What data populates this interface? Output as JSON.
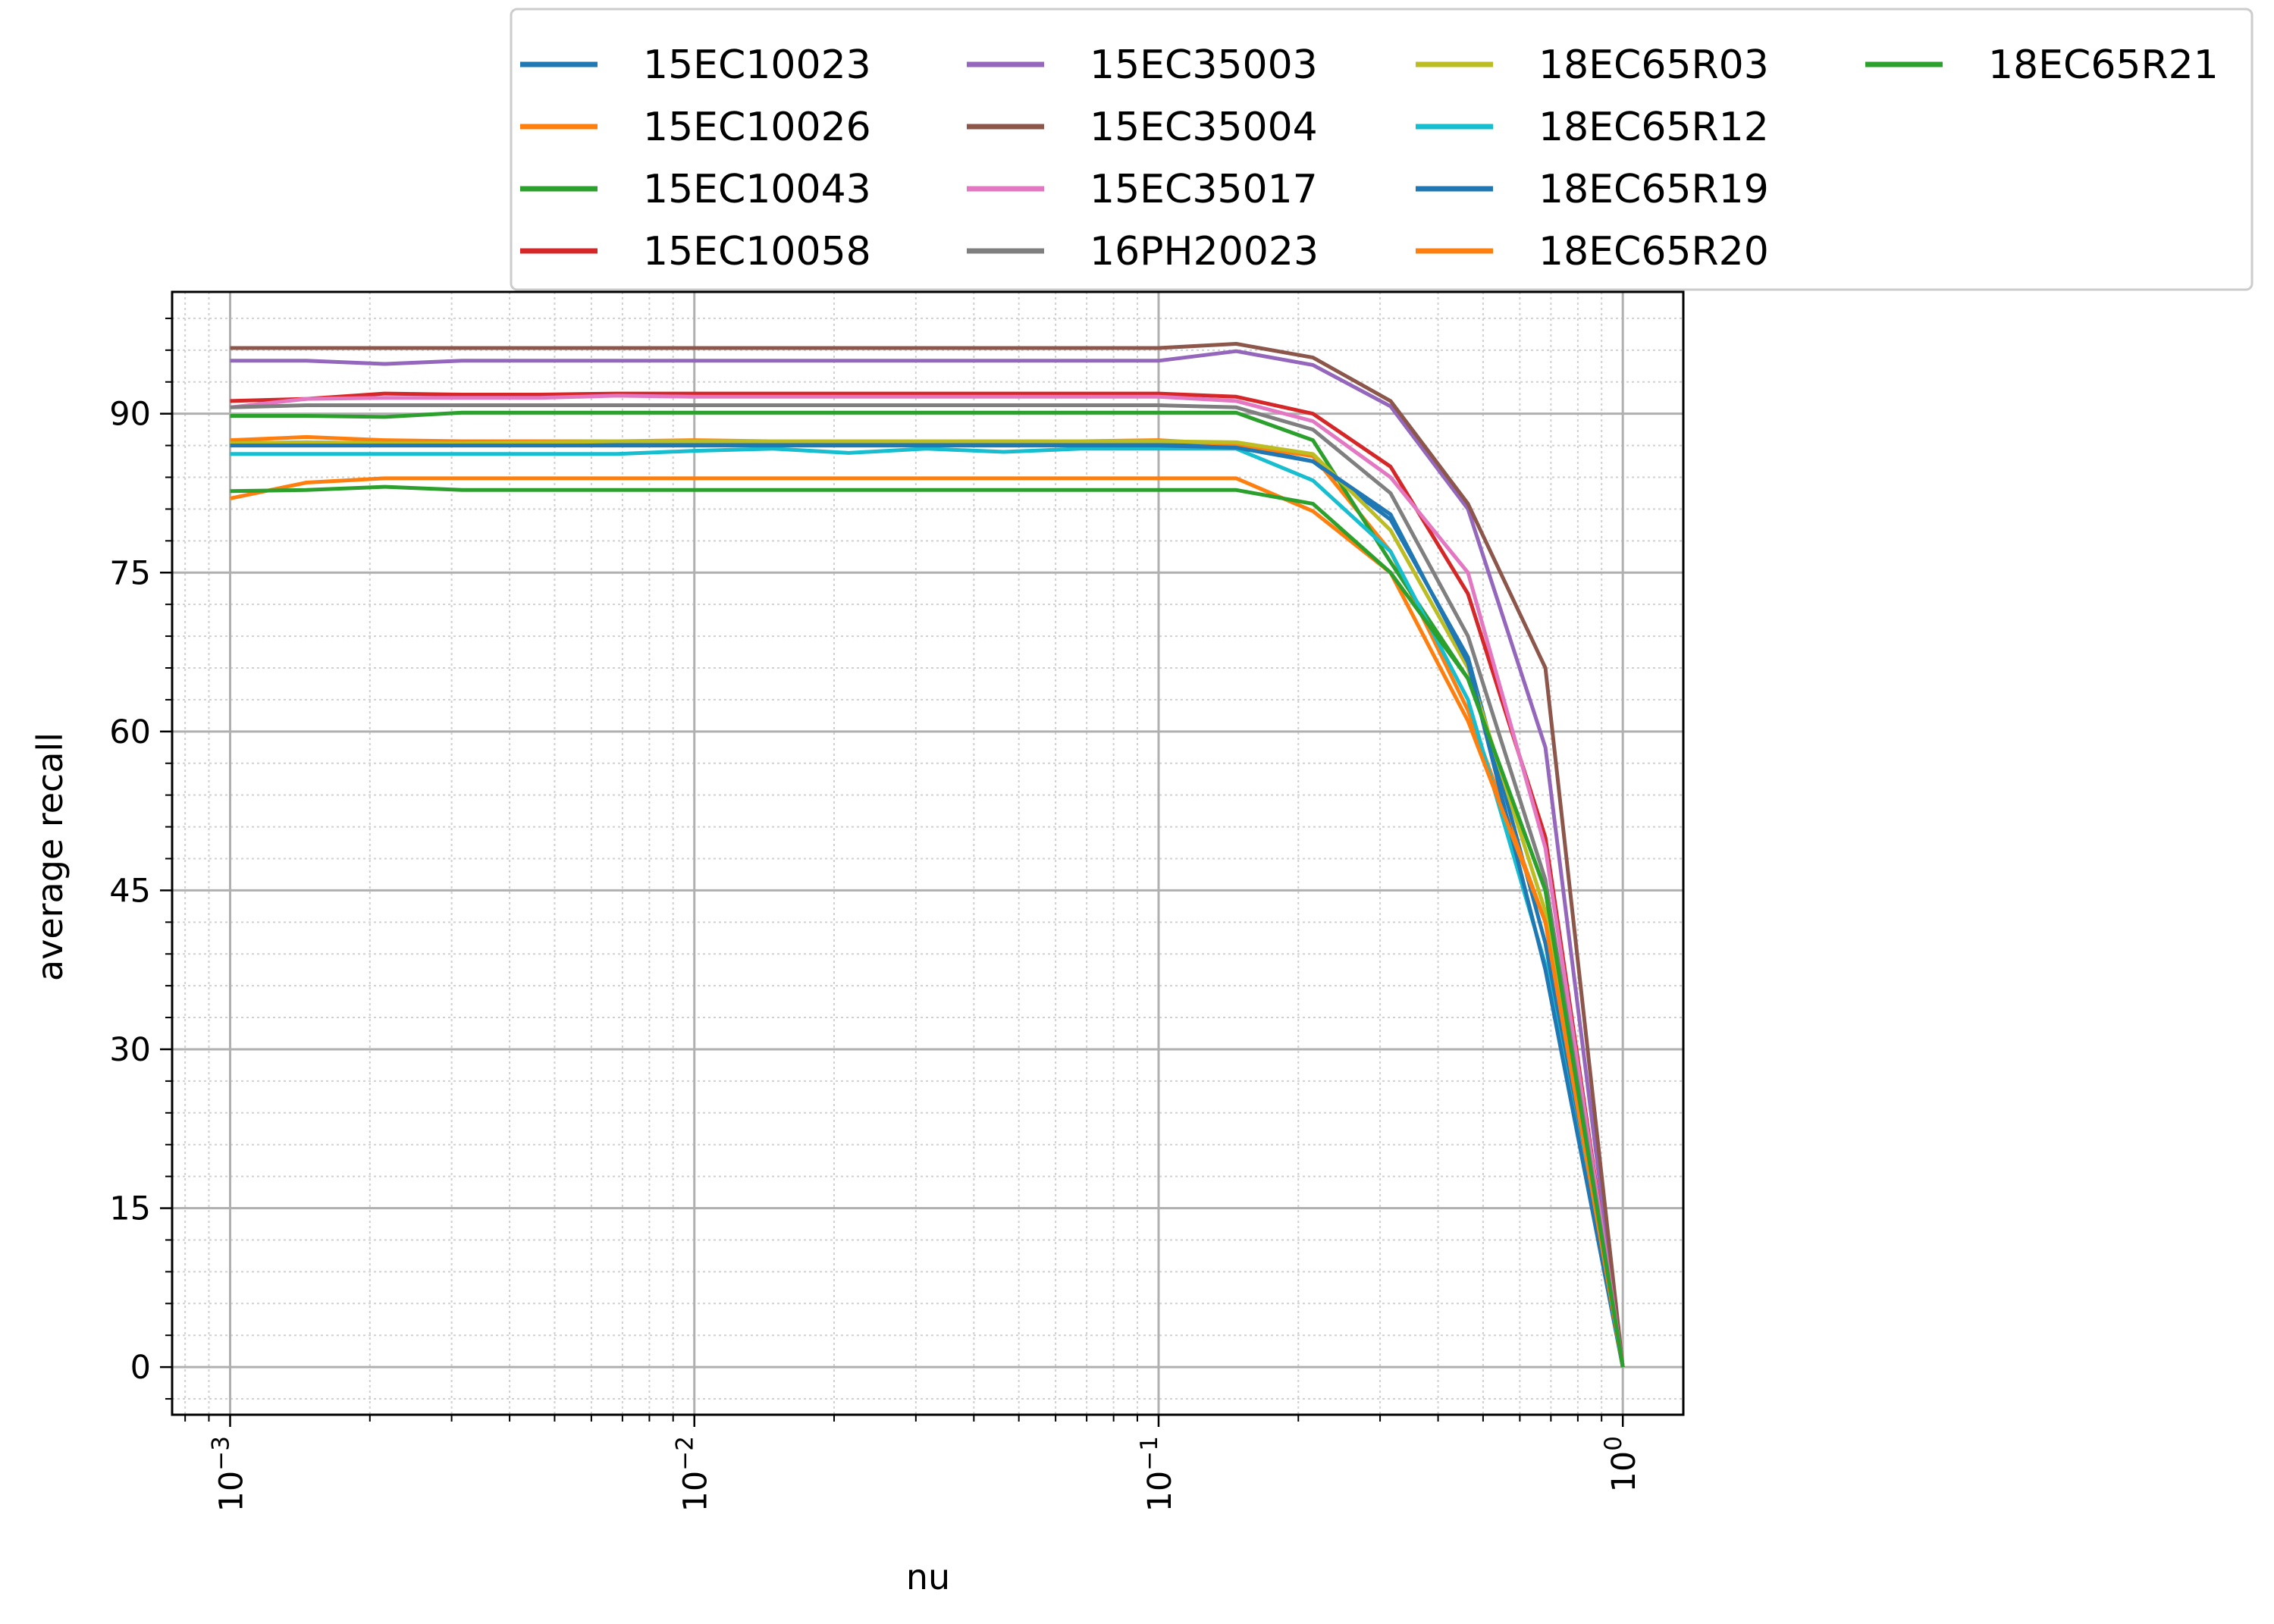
{
  "chart_data": {
    "type": "line",
    "xlabel": "nu",
    "ylabel": "average recall",
    "xscale": "log",
    "xlim": [
      0.00075,
      1.35
    ],
    "ylim": [
      -4.5,
      101.5
    ],
    "x_ticks": [
      {
        "value": 0.001,
        "base": "10",
        "exp": "−3"
      },
      {
        "value": 0.01,
        "base": "10",
        "exp": "−2"
      },
      {
        "value": 0.1,
        "base": "10",
        "exp": "−1"
      },
      {
        "value": 1,
        "base": "10",
        "exp": "0"
      }
    ],
    "y_ticks": [
      "0",
      "15",
      "30",
      "45",
      "60",
      "75",
      "90"
    ],
    "grid": {
      "major": true,
      "minor": true
    },
    "legend_position": "top",
    "legend_columns": 4,
    "x": [
      0.001,
      0.00146,
      0.00215,
      0.00316,
      0.00464,
      0.00681,
      0.01,
      0.0147,
      0.0215,
      0.0316,
      0.0464,
      0.0681,
      0.1,
      0.147,
      0.215,
      0.316,
      0.464,
      0.681,
      1.0
    ],
    "series": [
      {
        "name": "15EC10023",
        "color": "#1f77b4",
        "values": [
          87.2,
          87.3,
          87.2,
          87.2,
          87.2,
          87.2,
          87.3,
          87.2,
          87.2,
          87.2,
          87.2,
          87.2,
          87.3,
          87.0,
          85.5,
          80.0,
          67.0,
          40.0,
          0
        ]
      },
      {
        "name": "15EC10026",
        "color": "#ff7f0e",
        "values": [
          87.5,
          87.8,
          87.5,
          87.4,
          87.4,
          87.4,
          87.5,
          87.4,
          87.4,
          87.4,
          87.4,
          87.4,
          87.5,
          87.1,
          86.0,
          77.0,
          62.0,
          42.0,
          0
        ]
      },
      {
        "name": "15EC10043",
        "color": "#2ca02c",
        "values": [
          89.8,
          89.8,
          89.7,
          90.1,
          90.1,
          90.1,
          90.1,
          90.1,
          90.1,
          90.1,
          90.1,
          90.1,
          90.1,
          90.1,
          87.5,
          76.0,
          65.0,
          45.0,
          0
        ]
      },
      {
        "name": "15EC10058",
        "color": "#d62728",
        "values": [
          91.2,
          91.4,
          91.9,
          91.8,
          91.8,
          91.9,
          91.9,
          91.9,
          91.9,
          91.9,
          91.9,
          91.9,
          91.9,
          91.6,
          90.0,
          85.0,
          73.0,
          50.0,
          0
        ]
      },
      {
        "name": "15EC35003",
        "color": "#9467bd",
        "values": [
          95.0,
          95.0,
          94.7,
          95.0,
          95.0,
          95.0,
          95.0,
          95.0,
          95.0,
          95.0,
          95.0,
          95.0,
          95.0,
          95.9,
          94.6,
          90.7,
          81.0,
          58.5,
          0
        ]
      },
      {
        "name": "15EC35004",
        "color": "#8c564b",
        "values": [
          96.2,
          96.2,
          96.2,
          96.2,
          96.2,
          96.2,
          96.2,
          96.2,
          96.2,
          96.2,
          96.2,
          96.2,
          96.2,
          96.6,
          95.3,
          91.2,
          81.5,
          66.0,
          0
        ]
      },
      {
        "name": "15EC35017",
        "color": "#e377c2",
        "values": [
          90.6,
          91.4,
          91.5,
          91.5,
          91.5,
          91.7,
          91.6,
          91.6,
          91.6,
          91.6,
          91.6,
          91.6,
          91.6,
          91.2,
          89.3,
          84.0,
          75.0,
          49.0,
          0
        ]
      },
      {
        "name": "16PH20023",
        "color": "#7f7f7f",
        "values": [
          90.6,
          90.8,
          90.8,
          90.8,
          90.8,
          90.8,
          90.8,
          90.8,
          90.8,
          90.8,
          90.8,
          90.8,
          90.8,
          90.6,
          88.5,
          82.5,
          69.0,
          46.0,
          0
        ]
      },
      {
        "name": "18EC65R03",
        "color": "#bcbd22",
        "values": [
          87.2,
          87.3,
          87.2,
          87.2,
          87.3,
          87.4,
          87.4,
          87.4,
          87.4,
          87.4,
          87.4,
          87.4,
          87.4,
          87.3,
          86.2,
          79.0,
          66.0,
          43.0,
          0
        ]
      },
      {
        "name": "18EC65R12",
        "color": "#17becf",
        "values": [
          86.2,
          86.2,
          86.2,
          86.2,
          86.2,
          86.2,
          86.5,
          86.7,
          86.3,
          86.7,
          86.4,
          86.7,
          86.7,
          86.7,
          83.7,
          77.0,
          63.0,
          38.0,
          0
        ]
      },
      {
        "name": "18EC65R19",
        "color": "#1f77b4",
        "values": [
          87.0,
          87.0,
          87.0,
          87.0,
          87.0,
          87.0,
          87.0,
          87.0,
          87.0,
          87.0,
          87.0,
          87.0,
          87.0,
          86.8,
          85.5,
          80.5,
          66.5,
          37.5,
          0
        ]
      },
      {
        "name": "18EC65R20",
        "color": "#ff7f0e",
        "values": [
          82.0,
          83.5,
          83.9,
          83.9,
          83.9,
          83.9,
          83.9,
          83.9,
          83.9,
          83.9,
          83.9,
          83.9,
          83.9,
          83.9,
          80.8,
          75.0,
          61.0,
          42.0,
          0
        ]
      },
      {
        "name": "18EC65R21",
        "color": "#2ca02c",
        "values": [
          82.7,
          82.8,
          83.1,
          82.8,
          82.8,
          82.8,
          82.8,
          82.8,
          82.8,
          82.8,
          82.8,
          82.8,
          82.8,
          82.8,
          81.5,
          75.0,
          65.0,
          45.0,
          0
        ]
      }
    ]
  }
}
